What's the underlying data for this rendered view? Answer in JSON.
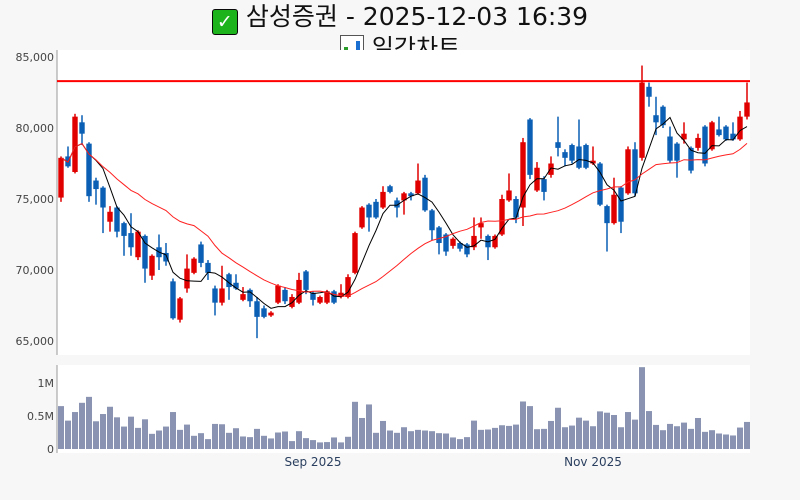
{
  "header": {
    "title": "삼성증권 - 2025-12-03 16:39",
    "title_icon": "check-mark-icon",
    "subtitle": "일간차트",
    "subtitle_icon": "bar-chart-icon"
  },
  "colors": {
    "up": "#e00000",
    "down": "#0b5fb4",
    "ma_short": "#000000",
    "ma_long": "#ff2020",
    "resistance": "#ff0000",
    "volume": "#8a94b2"
  },
  "chart_data": {
    "type": "candlestick",
    "title": "일간차트",
    "price_axis": {
      "ylim": [
        64000,
        85500
      ],
      "ticks": [
        85000,
        80000,
        75000,
        70000,
        65000
      ],
      "tick_labels": [
        "85,000",
        "80,000",
        "75,000",
        "70,000",
        "65,000"
      ]
    },
    "volume_axis": {
      "ylim": [
        0,
        1.3
      ],
      "ticks": [
        1,
        0.5,
        0
      ],
      "tick_labels": [
        "1M",
        "0.5M",
        "0"
      ],
      "unit": "M"
    },
    "x_ticks": [
      {
        "label": "Sep 2025",
        "index": 36
      },
      {
        "label": "Nov 2025",
        "index": 76
      }
    ],
    "resistance_line": 83300,
    "moving_averages": [
      {
        "name": "MA5",
        "period": 5
      },
      {
        "name": "MA20",
        "period": 20
      }
    ],
    "ohlc": [
      [
        75100,
        77900,
        78000,
        74800
      ],
      [
        78000,
        77300,
        78700,
        77200
      ],
      [
        76900,
        80800,
        81000,
        76800
      ],
      [
        80400,
        79600,
        80900,
        78800
      ],
      [
        78900,
        75200,
        79000,
        74800
      ],
      [
        76300,
        75700,
        76500,
        74600
      ],
      [
        75800,
        74400,
        75900,
        72600
      ],
      [
        73400,
        74100,
        74500,
        72700
      ],
      [
        74400,
        72700,
        74500,
        72300
      ],
      [
        73300,
        72400,
        73400,
        71000
      ],
      [
        72600,
        71600,
        74000,
        71000
      ],
      [
        70900,
        72700,
        72800,
        70700
      ],
      [
        72400,
        70100,
        72500,
        69100
      ],
      [
        69600,
        71000,
        71100,
        69300
      ],
      [
        71600,
        70900,
        72500,
        70000
      ],
      [
        71200,
        70600,
        71900,
        70300
      ],
      [
        69200,
        66600,
        69400,
        66500
      ],
      [
        66500,
        68000,
        68100,
        66300
      ],
      [
        68700,
        70100,
        71100,
        68400
      ],
      [
        69800,
        70800,
        70900,
        69700
      ],
      [
        71800,
        70500,
        72000,
        70200
      ],
      [
        70500,
        69800,
        70700,
        69300
      ],
      [
        68700,
        67700,
        68900,
        66800
      ],
      [
        67700,
        68700,
        70300,
        67500
      ],
      [
        69700,
        68800,
        69800,
        67900
      ],
      [
        69100,
        68700,
        69700,
        68600
      ],
      [
        67900,
        68300,
        68800,
        67800
      ],
      [
        68600,
        67800,
        68700,
        67400
      ],
      [
        67800,
        66700,
        68100,
        65200
      ],
      [
        67300,
        66700,
        67500,
        66600
      ],
      [
        66800,
        67000,
        67100,
        66700
      ],
      [
        67700,
        68900,
        69000,
        67600
      ],
      [
        68600,
        67800,
        68800,
        67600
      ],
      [
        67400,
        68100,
        68300,
        67300
      ],
      [
        67700,
        69300,
        69800,
        67600
      ],
      [
        69900,
        68600,
        70000,
        68300
      ],
      [
        68400,
        67900,
        68500,
        67500
      ],
      [
        67700,
        68100,
        68200,
        67600
      ],
      [
        67700,
        68500,
        68600,
        67600
      ],
      [
        68500,
        67700,
        68600,
        67600
      ],
      [
        68100,
        68400,
        69000,
        68000
      ],
      [
        68100,
        69500,
        69700,
        68000
      ],
      [
        69800,
        72600,
        72700,
        69700
      ],
      [
        73000,
        74400,
        74500,
        72900
      ],
      [
        74600,
        73700,
        74700,
        72700
      ],
      [
        74800,
        73700,
        75000,
        73600
      ],
      [
        74400,
        75500,
        75900,
        74300
      ],
      [
        75900,
        75500,
        76000,
        75400
      ],
      [
        74900,
        74400,
        75100,
        73700
      ],
      [
        74900,
        75400,
        75500,
        73900
      ],
      [
        75400,
        75200,
        75500,
        74900
      ],
      [
        75400,
        76300,
        77500,
        75300
      ],
      [
        76500,
        74200,
        76700,
        74100
      ],
      [
        74200,
        72800,
        74300,
        72100
      ],
      [
        73000,
        71900,
        73100,
        71100
      ],
      [
        72500,
        71300,
        72600,
        71000
      ],
      [
        71700,
        72200,
        72300,
        71500
      ],
      [
        71900,
        71500,
        72000,
        71300
      ],
      [
        71800,
        71100,
        71900,
        70900
      ],
      [
        71600,
        72400,
        73700,
        71400
      ],
      [
        73000,
        73300,
        73700,
        72200
      ],
      [
        72400,
        71600,
        72500,
        70700
      ],
      [
        71600,
        72400,
        72500,
        71500
      ],
      [
        72500,
        75000,
        75300,
        72400
      ],
      [
        74900,
        75600,
        76800,
        74800
      ],
      [
        75000,
        73700,
        75200,
        73300
      ],
      [
        74400,
        79000,
        79300,
        73100
      ],
      [
        80600,
        76700,
        80700,
        76400
      ],
      [
        75600,
        77200,
        77600,
        75500
      ],
      [
        76400,
        75500,
        76600,
        74900
      ],
      [
        76700,
        77500,
        78000,
        76500
      ],
      [
        79000,
        78600,
        80800,
        78000
      ],
      [
        78300,
        77900,
        78500,
        77300
      ],
      [
        78800,
        77700,
        78900,
        77500
      ],
      [
        78700,
        77200,
        80600,
        77100
      ],
      [
        78800,
        77200,
        78900,
        77100
      ],
      [
        77500,
        77700,
        78700,
        77400
      ],
      [
        77500,
        74600,
        77600,
        74500
      ],
      [
        74500,
        73300,
        74600,
        71300
      ],
      [
        73300,
        75300,
        76500,
        73200
      ],
      [
        75800,
        73400,
        75900,
        72600
      ],
      [
        75400,
        78500,
        78700,
        75300
      ],
      [
        78500,
        75400,
        79000,
        75200
      ],
      [
        77900,
        83200,
        84400,
        77700
      ],
      [
        82900,
        82200,
        83200,
        81500
      ],
      [
        80900,
        80400,
        82200,
        79500
      ],
      [
        81500,
        80200,
        81600,
        80000
      ],
      [
        79400,
        77700,
        80100,
        77500
      ],
      [
        78900,
        77700,
        79000,
        76500
      ],
      [
        79200,
        79600,
        80400,
        78900
      ],
      [
        78600,
        77000,
        78700,
        76800
      ],
      [
        78600,
        79300,
        79600,
        78400
      ],
      [
        80100,
        77500,
        80200,
        77300
      ],
      [
        78500,
        80400,
        80500,
        78400
      ],
      [
        79900,
        79500,
        80800,
        79400
      ],
      [
        80100,
        79200,
        80200,
        79100
      ],
      [
        79600,
        79200,
        80400,
        79100
      ],
      [
        79200,
        80800,
        81200,
        79100
      ],
      [
        80800,
        81800,
        83200,
        80600
      ]
    ],
    "volume_m": [
      0.65,
      0.43,
      0.56,
      0.7,
      0.79,
      0.42,
      0.53,
      0.64,
      0.48,
      0.34,
      0.49,
      0.32,
      0.45,
      0.23,
      0.28,
      0.34,
      0.56,
      0.29,
      0.37,
      0.2,
      0.24,
      0.15,
      0.38,
      0.375,
      0.245,
      0.315,
      0.19,
      0.18,
      0.305,
      0.2,
      0.16,
      0.25,
      0.265,
      0.12,
      0.27,
      0.165,
      0.135,
      0.1,
      0.105,
      0.175,
      0.1,
      0.185,
      0.715,
      0.47,
      0.675,
      0.245,
      0.425,
      0.28,
      0.245,
      0.33,
      0.27,
      0.29,
      0.28,
      0.27,
      0.24,
      0.235,
      0.175,
      0.15,
      0.18,
      0.43,
      0.29,
      0.295,
      0.32,
      0.36,
      0.35,
      0.37,
      0.72,
      0.65,
      0.3,
      0.305,
      0.425,
      0.625,
      0.33,
      0.355,
      0.475,
      0.43,
      0.345,
      0.57,
      0.55,
      0.515,
      0.33,
      0.56,
      0.445,
      1.24,
      0.575,
      0.365,
      0.285,
      0.38,
      0.345,
      0.4,
      0.305,
      0.47,
      0.26,
      0.285,
      0.235,
      0.22,
      0.205,
      0.325,
      0.41
    ]
  }
}
